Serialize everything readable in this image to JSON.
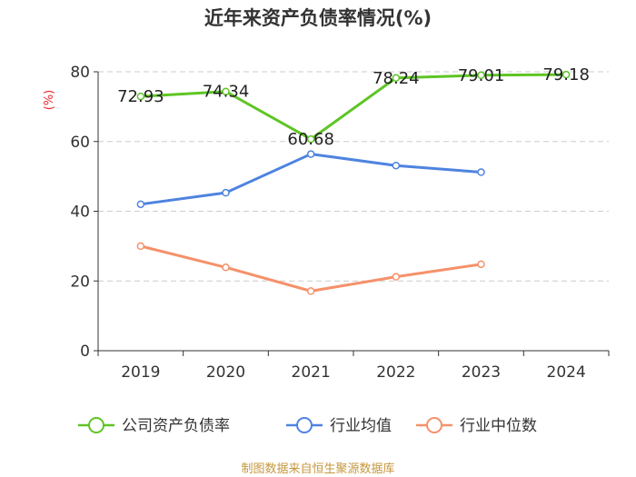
{
  "chart_data": {
    "type": "line",
    "title": "近年来资产负债率情况(%)",
    "ylabel": "(%)",
    "xlabel": "",
    "categories": [
      "2019",
      "2020",
      "2021",
      "2022",
      "2023",
      "2024"
    ],
    "ylim": [
      0,
      80
    ],
    "yticks": [
      0,
      20,
      40,
      60,
      80
    ],
    "grid": true,
    "legend_position": "bottom",
    "series": [
      {
        "name": "公司资产负债率",
        "color": "#5ec524",
        "values": [
          72.93,
          74.34,
          60.68,
          78.24,
          79.01,
          79.18
        ],
        "labels": [
          "72.93",
          "74.34",
          "60.68",
          "78.24",
          "79.01",
          "79.18"
        ]
      },
      {
        "name": "行业均值",
        "color": "#4e83e0",
        "values": [
          42.0,
          45.3,
          56.4,
          53.1,
          51.2,
          null
        ]
      },
      {
        "name": "行业中位数",
        "color": "#f5916a",
        "values": [
          30.0,
          23.9,
          17.1,
          21.2,
          24.8,
          null
        ]
      }
    ],
    "source": "制图数据来自恒生聚源数据库"
  }
}
